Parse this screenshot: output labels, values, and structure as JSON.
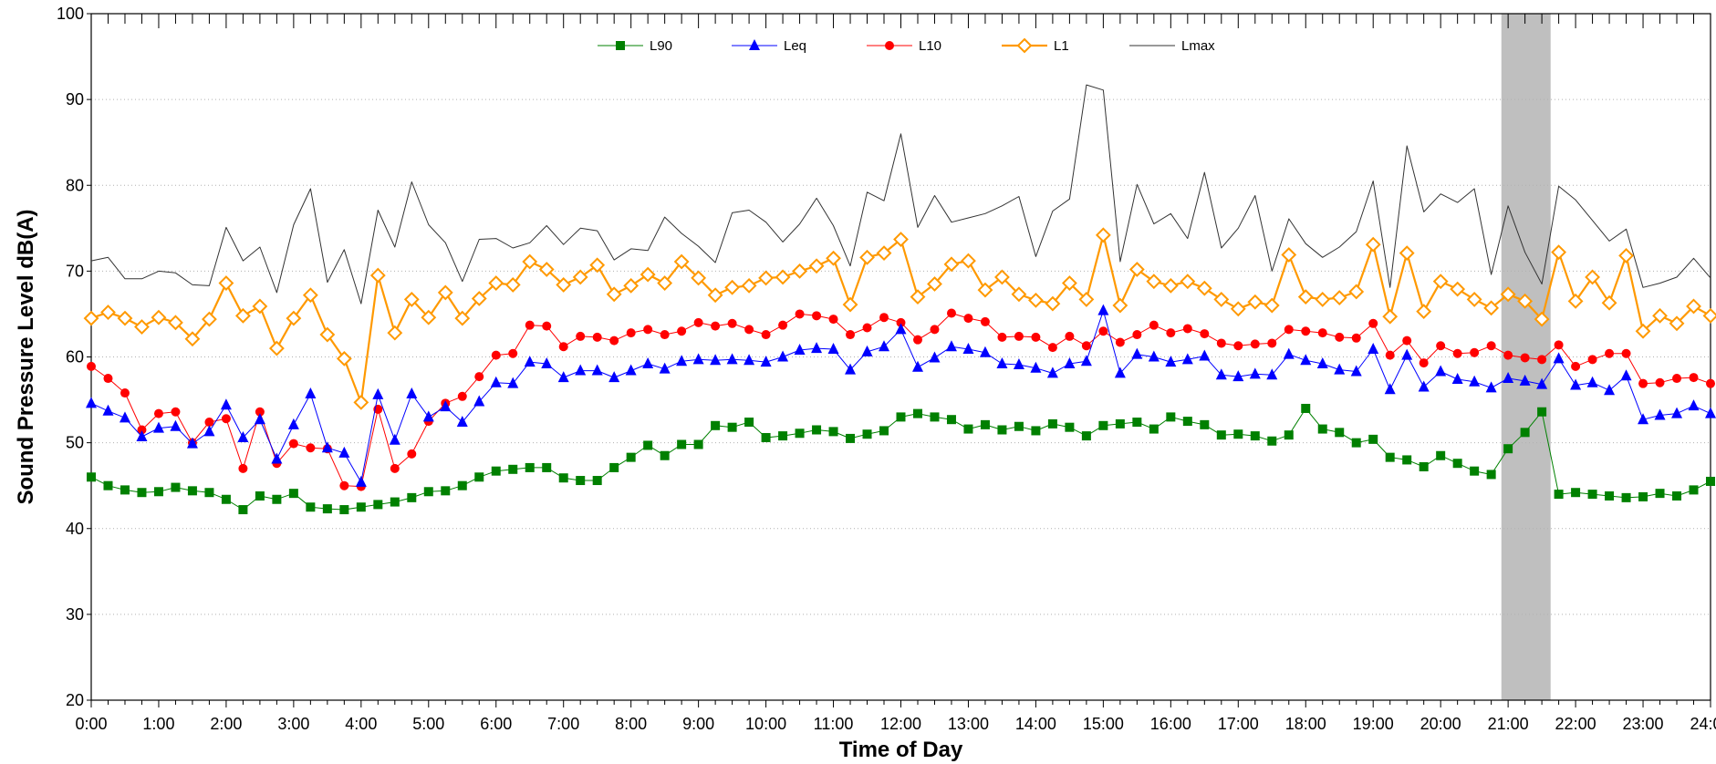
{
  "chart_data": {
    "type": "line",
    "title": "",
    "xlabel": "Time of Day",
    "ylabel": "Sound Pressure Level dB(A)",
    "ylim": [
      20,
      100
    ],
    "yticks": [
      20,
      30,
      40,
      50,
      60,
      70,
      80,
      90,
      100
    ],
    "xlim": [
      0,
      24
    ],
    "x_tick_labels": [
      "0:00",
      "1:00",
      "2:00",
      "3:00",
      "4:00",
      "5:00",
      "6:00",
      "7:00",
      "8:00",
      "9:00",
      "10:00",
      "11:00",
      "12:00",
      "13:00",
      "14:00",
      "15:00",
      "16:00",
      "17:00",
      "18:00",
      "19:00",
      "20:00",
      "21:00",
      "22:00",
      "23:00",
      "24:00"
    ],
    "x_interval_hours": 0.25,
    "grid": "horizontal dotted",
    "legend_position": "top-center",
    "shaded_region": {
      "x_start_hours": 20.9,
      "x_end_hours": 21.63,
      "color": "#bfbfbf"
    },
    "series": [
      {
        "name": "L90",
        "color": "#008000",
        "marker": "square",
        "values": [
          46.0,
          45.0,
          44.5,
          44.2,
          44.3,
          44.8,
          44.4,
          44.2,
          43.4,
          42.2,
          43.8,
          43.4,
          44.1,
          42.5,
          42.3,
          42.2,
          42.5,
          42.8,
          43.1,
          43.6,
          44.3,
          44.4,
          45.0,
          46.0,
          46.7,
          46.9,
          47.1,
          47.1,
          45.9,
          45.6,
          45.6,
          47.1,
          48.3,
          49.7,
          48.5,
          49.8,
          49.8,
          52.0,
          51.8,
          52.4,
          50.6,
          50.8,
          51.1,
          51.5,
          51.3,
          50.5,
          51.0,
          51.4,
          53.0,
          53.4,
          53.0,
          52.7,
          51.6,
          52.1,
          51.5,
          51.9,
          51.4,
          52.2,
          51.8,
          50.8,
          52.0,
          52.2,
          52.4,
          51.6,
          53.0,
          52.5,
          52.1,
          50.9,
          51.0,
          50.8,
          50.2,
          50.9,
          54.0,
          51.6,
          51.2,
          50.0,
          50.4,
          48.3,
          48.0,
          47.2,
          48.5,
          47.6,
          46.7,
          46.3,
          49.3,
          51.2,
          53.6,
          44.0,
          44.2,
          44.0,
          43.8,
          43.6,
          43.7,
          44.1,
          43.8,
          44.5,
          45.5
        ]
      },
      {
        "name": "Leq",
        "color": "#0000ff",
        "marker": "triangle",
        "values": [
          54.6,
          53.7,
          52.9,
          50.7,
          51.7,
          51.9,
          49.9,
          51.3,
          54.4,
          50.6,
          52.7,
          48.1,
          52.1,
          55.7,
          49.4,
          48.8,
          45.4,
          55.6,
          50.3,
          55.7,
          53.0,
          54.2,
          52.4,
          54.8,
          57.0,
          56.9,
          59.4,
          59.2,
          57.6,
          58.4,
          58.4,
          57.6,
          58.4,
          59.2,
          58.6,
          59.5,
          59.7,
          59.6,
          59.7,
          59.6,
          59.4,
          60.0,
          60.8,
          61.0,
          60.9,
          58.5,
          60.6,
          61.2,
          63.2,
          58.8,
          59.9,
          61.2,
          60.9,
          60.5,
          59.2,
          59.1,
          58.7,
          58.1,
          59.2,
          59.5,
          65.4,
          58.1,
          60.3,
          60.0,
          59.4,
          59.7,
          60.1,
          57.9,
          57.7,
          58.0,
          57.9,
          60.3,
          59.6,
          59.2,
          58.5,
          58.3,
          60.9,
          56.2,
          60.2,
          56.5,
          58.3,
          57.4,
          57.1,
          56.4,
          57.5,
          57.2,
          56.8,
          59.8,
          56.7,
          57.0,
          56.1,
          57.8,
          52.7,
          53.2,
          53.4,
          54.3,
          53.4
        ]
      },
      {
        "name": "L10",
        "color": "#ff0000",
        "marker": "circle",
        "values": [
          58.9,
          57.5,
          55.8,
          51.5,
          53.4,
          53.6,
          50.0,
          52.4,
          52.8,
          47.0,
          53.6,
          47.6,
          49.9,
          49.4,
          49.3,
          45.0,
          44.9,
          53.9,
          47.0,
          48.7,
          52.5,
          54.6,
          55.4,
          57.7,
          60.2,
          60.4,
          63.7,
          63.6,
          61.2,
          62.4,
          62.3,
          61.9,
          62.8,
          63.2,
          62.6,
          63.0,
          64.0,
          63.6,
          63.9,
          63.2,
          62.6,
          63.7,
          65.0,
          64.8,
          64.4,
          62.6,
          63.4,
          64.6,
          64.0,
          62.0,
          63.2,
          65.1,
          64.5,
          64.1,
          62.3,
          62.4,
          62.3,
          61.1,
          62.4,
          61.3,
          63.0,
          61.7,
          62.6,
          63.7,
          62.8,
          63.3,
          62.7,
          61.6,
          61.3,
          61.5,
          61.6,
          63.2,
          63.0,
          62.8,
          62.3,
          62.2,
          63.9,
          60.2,
          61.9,
          59.3,
          61.3,
          60.4,
          60.5,
          61.3,
          60.2,
          59.9,
          59.7,
          61.4,
          58.9,
          59.7,
          60.4,
          60.4,
          56.9,
          57.0,
          57.5,
          57.6,
          56.9
        ]
      },
      {
        "name": "L1",
        "color": "#ff9900",
        "marker": "diamond-open",
        "values": [
          64.5,
          65.2,
          64.5,
          63.5,
          64.6,
          64.0,
          62.1,
          64.4,
          68.6,
          64.8,
          65.9,
          61.0,
          64.5,
          67.2,
          62.6,
          59.8,
          54.7,
          69.5,
          62.8,
          66.7,
          64.6,
          67.5,
          64.5,
          66.8,
          68.6,
          68.4,
          71.1,
          70.2,
          68.4,
          69.3,
          70.7,
          67.3,
          68.3,
          69.6,
          68.6,
          71.1,
          69.2,
          67.2,
          68.1,
          68.3,
          69.2,
          69.3,
          70.0,
          70.6,
          71.5,
          66.1,
          71.6,
          72.1,
          73.7,
          67.0,
          68.5,
          70.8,
          71.2,
          67.8,
          69.3,
          67.3,
          66.6,
          66.2,
          68.6,
          66.7,
          74.2,
          66.0,
          70.2,
          68.8,
          68.3,
          68.8,
          68.0,
          66.7,
          65.6,
          66.4,
          66.0,
          71.9,
          67.0,
          66.7,
          66.9,
          67.6,
          73.1,
          64.7,
          72.1,
          65.3,
          68.8,
          67.9,
          66.7,
          65.7,
          67.3,
          66.5,
          64.4,
          72.2,
          66.5,
          69.3,
          66.3,
          71.8,
          63.0,
          64.8,
          63.9,
          65.9,
          64.8
        ]
      },
      {
        "name": "Lmax",
        "color": "#333333",
        "marker": "none",
        "values": [
          71.2,
          71.6,
          69.1,
          69.1,
          70.0,
          69.8,
          68.4,
          68.3,
          75.1,
          71.2,
          72.8,
          67.5,
          75.4,
          79.6,
          68.7,
          72.5,
          66.2,
          77.1,
          72.8,
          80.4,
          75.4,
          73.3,
          68.8,
          73.7,
          73.8,
          72.7,
          73.3,
          75.3,
          73.1,
          75.0,
          74.7,
          71.3,
          72.6,
          72.4,
          76.3,
          74.4,
          72.9,
          71.0,
          76.8,
          77.1,
          75.7,
          73.4,
          75.5,
          78.5,
          75.3,
          70.6,
          79.2,
          78.2,
          86.0,
          75.1,
          78.8,
          75.7,
          76.2,
          76.7,
          77.6,
          78.7,
          71.7,
          77.0,
          78.4,
          91.7,
          91.1,
          71.1,
          80.1,
          75.5,
          76.7,
          73.8,
          81.5,
          72.7,
          75.0,
          78.8,
          70.0,
          76.1,
          73.2,
          71.6,
          72.8,
          74.6,
          80.5,
          68.1,
          84.6,
          76.9,
          79.0,
          78.0,
          79.6,
          69.6,
          77.6,
          72.2,
          68.5,
          79.9,
          78.3,
          75.9,
          73.5,
          74.9,
          68.1,
          68.6,
          69.3,
          71.5,
          69.2
        ]
      }
    ]
  }
}
